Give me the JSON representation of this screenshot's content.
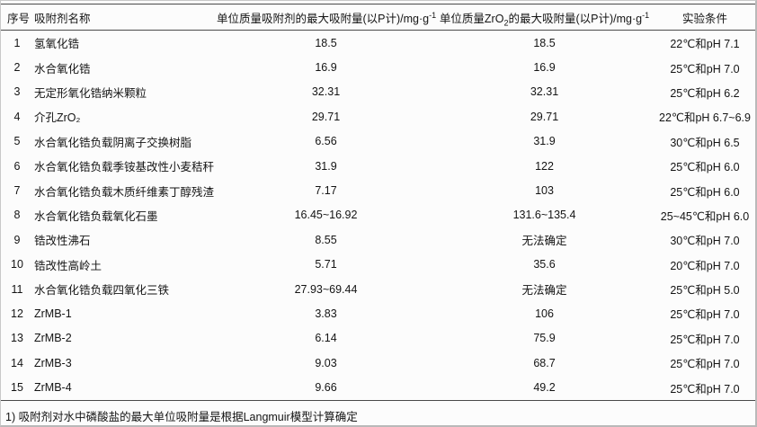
{
  "table": {
    "headers": {
      "col1": "序号",
      "col2": "吸附剂名称",
      "col3_main": "单位质量吸附剂的最大吸附量(以P计)/mg·g",
      "col3_sup": "-1",
      "col4_pre": "单位质量ZrO",
      "col4_sub": "2",
      "col4_mid": "的最大吸附量(以P计)/mg·g",
      "col4_sup": "-1",
      "col5": "实验条件"
    },
    "rows": [
      {
        "no": "1",
        "name": "氢氧化锆",
        "q_adsorbent": "18.5",
        "q_zro2": "18.5",
        "conditions": "22℃和pH 7.1"
      },
      {
        "no": "2",
        "name": "水合氧化锆",
        "q_adsorbent": "16.9",
        "q_zro2": "16.9",
        "conditions": "25℃和pH 7.0"
      },
      {
        "no": "3",
        "name": "无定形氧化锆纳米颗粒",
        "q_adsorbent": "32.31",
        "q_zro2": "32.31",
        "conditions": "25℃和pH 6.2"
      },
      {
        "no": "4",
        "name": "介孔ZrO₂",
        "q_adsorbent": "29.71",
        "q_zro2": "29.71",
        "conditions": "22℃和pH 6.7~6.9"
      },
      {
        "no": "5",
        "name": "水合氧化锆负载阴离子交换树脂",
        "q_adsorbent": "6.56",
        "q_zro2": "31.9",
        "conditions": "30℃和pH 6.5"
      },
      {
        "no": "6",
        "name": "水合氧化锆负载季铵基改性小麦秸秆",
        "q_adsorbent": "31.9",
        "q_zro2": "122",
        "conditions": "25℃和pH 6.0"
      },
      {
        "no": "7",
        "name": "水合氧化锆负载木质纤维素丁醇残渣",
        "q_adsorbent": "7.17",
        "q_zro2": "103",
        "conditions": "25℃和pH 6.0"
      },
      {
        "no": "8",
        "name": "水合氧化锆负载氧化石墨",
        "q_adsorbent": "16.45~16.92",
        "q_zro2": "131.6~135.4",
        "conditions": "25~45℃和pH 6.0"
      },
      {
        "no": "9",
        "name": "锆改性沸石",
        "q_adsorbent": "8.55",
        "q_zro2": "无法确定",
        "conditions": "30℃和pH 7.0"
      },
      {
        "no": "10",
        "name": "锆改性高岭土",
        "q_adsorbent": "5.71",
        "q_zro2": "35.6",
        "conditions": "20℃和pH 7.0"
      },
      {
        "no": "11",
        "name": "水合氧化锆负载四氧化三铁",
        "q_adsorbent": "27.93~69.44",
        "q_zro2": "无法确定",
        "conditions": "25℃和pH 5.0"
      },
      {
        "no": "12",
        "name": "ZrMB-1",
        "q_adsorbent": "3.83",
        "q_zro2": "106",
        "conditions": "25℃和pH 7.0"
      },
      {
        "no": "13",
        "name": "ZrMB-2",
        "q_adsorbent": "6.14",
        "q_zro2": "75.9",
        "conditions": "25℃和pH 7.0"
      },
      {
        "no": "14",
        "name": "ZrMB-3",
        "q_adsorbent": "9.03",
        "q_zro2": "68.7",
        "conditions": "25℃和pH 7.0"
      },
      {
        "no": "15",
        "name": "ZrMB-4",
        "q_adsorbent": "9.66",
        "q_zro2": "49.2",
        "conditions": "25℃和pH 7.0"
      }
    ],
    "footnote": "1) 吸附剂对水中磷酸盐的最大单位吸附量是根据Langmuir模型计算确定"
  }
}
